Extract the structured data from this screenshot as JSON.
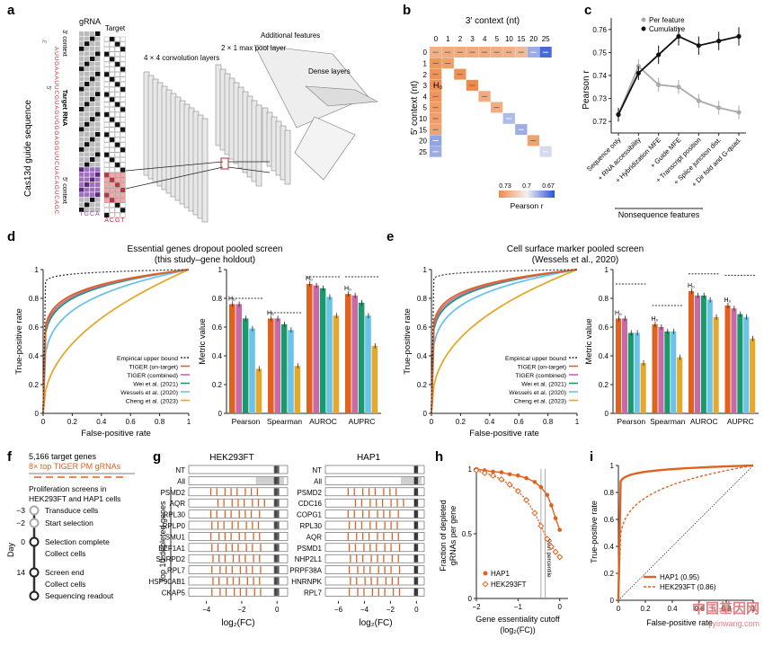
{
  "panels": {
    "a": {
      "letter": "a",
      "col_grna": "gRNA",
      "col_target": "Target",
      "seq_label": "Cas13d guide sequence",
      "ctx3": "3′ context",
      "target_rna": "Target RNA",
      "ctx5": "5′ context",
      "spacer": "AUUGAAAUUCGUAGUGGGAGGUUCUACAGUCAGC",
      "bases_grna": "TGCA",
      "bases_target": "ACGT",
      "prime5": "5′",
      "prime3": "3′",
      "layer_conv": "4 × 4 convolution layers",
      "layer_pool": "2 × 1 max pool layer",
      "layer_feat": "Additional features",
      "layer_dense": "Dense layers"
    },
    "b": {
      "letter": "b",
      "title": "3′ context (nt)",
      "ylabel": "5′ context (nt)",
      "h0": "H₀",
      "legend_title": "Pearson r",
      "legend_ticks": [
        "0.73",
        "0.7",
        "0.67"
      ],
      "low": "#ef8a4a",
      "mid": "#f2f2f2",
      "high": "#2a52d6"
    },
    "c": {
      "letter": "c",
      "ylabel": "Pearson r",
      "xgroup": "Nonsequence features",
      "legend": [
        "Per feature",
        "Cumulative"
      ],
      "c_per": "#aaaaaa",
      "c_cum": "#111111"
    },
    "d": {
      "letter": "d",
      "title1": "Essential genes dropout pooled screen",
      "title2": "(this study–gene holdout)",
      "h0": "H₀"
    },
    "e": {
      "letter": "e",
      "title1": "Cell surface marker pooled screen",
      "title2": "(Wessels et al., 2020)",
      "h0": "H₀"
    },
    "roc": {
      "xlabel": "False-positive rate",
      "ylabel": "True-positive rate",
      "metric_ylabel": "Metric value",
      "metrics": [
        "Pearson",
        "Spearman",
        "AUROC",
        "AUPRC"
      ],
      "legend": [
        {
          "name": "Empirical upper bound",
          "color": "#333333",
          "dash": true
        },
        {
          "name": "TIGER (on-target)",
          "color": "#e0621e"
        },
        {
          "name": "TIGER (combined)",
          "color": "#c76aa8"
        },
        {
          "name": "Wei et al. (2021)",
          "color": "#1a9a6c"
        },
        {
          "name": "Wessels et al. (2020)",
          "color": "#6cc3e8"
        },
        {
          "name": "Cheng et al. (2023)",
          "color": "#e6a82c"
        }
      ]
    },
    "f": {
      "letter": "f",
      "genes": "5,166 target genes",
      "grnas": "8× top TIGER PM gRNAs",
      "desc1": "Proliferation screens in",
      "desc2": "HEK293FT and HAP1 cells",
      "day_label": "Day",
      "steps": [
        {
          "day": "−3",
          "text": "Transduce cells"
        },
        {
          "day": "−2",
          "text": "Start selection"
        },
        {
          "day": "0",
          "text": "Selection complete"
        },
        {
          "day": "",
          "text": "Collect cells"
        },
        {
          "day": "14",
          "text": "Screen end"
        },
        {
          "day": "",
          "text": "Collect cells"
        },
        {
          "day": "",
          "text": "Sequencing readout"
        }
      ]
    },
    "g": {
      "letter": "g",
      "left_title": "HEK293FT",
      "right_title": "HAP1",
      "side_label": "Top 10 depleted genes",
      "xlabel": "log₂(FC)",
      "left_rows": [
        "NT",
        "All",
        "PSMD2",
        "AQR",
        "RPL30",
        "RPLP0",
        "SMU1",
        "EEF1A1",
        "SNRPD2",
        "RPL7",
        "HSP90AB1",
        "CKAP5"
      ],
      "right_rows": [
        "NT",
        "All",
        "PSMD2",
        "CDC16",
        "COPG1",
        "RPL30",
        "AQR",
        "PSMD1",
        "NHP2L1",
        "PRPF38A",
        "HNRNPK",
        "RPL7"
      ],
      "left_ticks": [
        "−4",
        "−2",
        "0"
      ],
      "right_ticks": [
        "−6",
        "−4",
        "−2",
        "0"
      ]
    },
    "h": {
      "letter": "h",
      "ylabel1": "Fraction of depleted",
      "ylabel2": "gRNAs per gene",
      "xlabel1": "Gene essentiality cutoff",
      "xlabel2": "(log₂(FC))",
      "pct": "99th percentile",
      "legend": [
        "HAP1",
        "HEK293FT"
      ],
      "xticks": [
        "−2",
        "−1",
        "0"
      ],
      "yticks": [
        "0",
        "0.5",
        "1"
      ]
    },
    "i": {
      "letter": "i",
      "ylabel": "True-positive rate",
      "xlabel": "False-positive rate",
      "legend": [
        "HAP1 (0.95)",
        "HEK293FT (0.86)"
      ],
      "xticks": [
        "0",
        "0.2",
        "0.4",
        "0.6",
        "0.8",
        "1"
      ],
      "yticks": [
        "0",
        "0.2",
        "0.4",
        "0.6",
        "0.8",
        "1"
      ]
    },
    "watermark": {
      "cn": "中国基因网",
      "url": "jiyinwang.com"
    }
  },
  "chart_data": [
    {
      "panel": "b",
      "type": "heatmap",
      "x_categories": [
        "0",
        "1",
        "2",
        "3",
        "4",
        "5",
        "10",
        "15",
        "20",
        "25"
      ],
      "y_categories": [
        "0",
        "1",
        "2",
        "3",
        "4",
        "5",
        "10",
        "15",
        "20",
        "25"
      ],
      "row0": [
        0.727,
        0.729,
        0.729,
        0.729,
        0.729,
        0.728,
        0.727,
        0.724,
        0.69,
        0.675
      ],
      "col0": [
        0.727,
        0.736,
        0.737,
        0.738,
        0.736,
        0.734,
        0.733,
        0.732,
        0.688,
        0.69
      ],
      "diagonal": [
        0.727,
        0.733,
        0.738,
        0.74,
        0.729,
        0.728,
        0.693,
        0.69,
        0.732,
        0.7
      ],
      "range": [
        0.67,
        0.74
      ]
    },
    {
      "panel": "c",
      "type": "line",
      "categories": [
        "Sequence only",
        "+ RNA accessibility",
        "+ Hybridization MFE",
        "+ Guide MFE",
        "+ Transcript position",
        "+ Splice junction dist.",
        "+ Dir fold and G-quad."
      ],
      "series": [
        {
          "name": "Per feature",
          "values": [
            0.723,
            0.744,
            0.736,
            0.735,
            0.729,
            0.726,
            0.724
          ],
          "err": [
            0.003,
            0.003,
            0.003,
            0.003,
            0.003,
            0.003,
            0.003
          ]
        },
        {
          "name": "Cumulative",
          "values": [
            0.723,
            0.741,
            0.749,
            0.757,
            0.753,
            0.755,
            0.757
          ],
          "err": [
            0.003,
            0.003,
            0.004,
            0.004,
            0.004,
            0.004,
            0.004
          ]
        }
      ],
      "ylim": [
        0.715,
        0.765
      ],
      "yticks": [
        0.72,
        0.73,
        0.74,
        0.75,
        0.76
      ]
    },
    {
      "panel": "d-roc",
      "type": "line",
      "series": [
        {
          "name": "Empirical upper bound",
          "shape": 0.02
        },
        {
          "name": "TIGER (on-target)",
          "shape": 0.12
        },
        {
          "name": "TIGER (combined)",
          "shape": 0.13
        },
        {
          "name": "Wei et al. (2021)",
          "shape": 0.14
        },
        {
          "name": "Wessels et al. (2020)",
          "shape": 0.21
        },
        {
          "name": "Cheng et al. (2023)",
          "shape": 0.45
        }
      ],
      "xlim": [
        0,
        1
      ],
      "ylim": [
        0,
        1
      ]
    },
    {
      "panel": "d-metrics",
      "type": "bar",
      "categories": [
        "Pearson",
        "Spearman",
        "AUROC",
        "AUPRC"
      ],
      "series": [
        {
          "name": "TIGER (on-target)",
          "values": [
            0.76,
            0.66,
            0.9,
            0.83
          ]
        },
        {
          "name": "TIGER (combined)",
          "values": [
            0.76,
            0.66,
            0.89,
            0.82
          ]
        },
        {
          "name": "Wei et al. (2021)",
          "values": [
            0.66,
            0.62,
            0.87,
            0.77
          ]
        },
        {
          "name": "Wessels et al. (2020)",
          "values": [
            0.59,
            0.58,
            0.81,
            0.68
          ]
        },
        {
          "name": "Cheng et al. (2023)",
          "values": [
            0.31,
            0.33,
            0.68,
            0.47
          ]
        }
      ],
      "upper_bound": [
        0.8,
        0.7,
        0.95,
        0.95
      ],
      "ylim": [
        0,
        1
      ]
    },
    {
      "panel": "e-roc",
      "type": "line",
      "series": [
        {
          "name": "Empirical upper bound",
          "shape": 0.015
        },
        {
          "name": "TIGER (on-target)",
          "shape": 0.11
        },
        {
          "name": "TIGER (combined)",
          "shape": 0.12
        },
        {
          "name": "Wei et al. (2021)",
          "shape": 0.13
        },
        {
          "name": "Wessels et al. (2020)",
          "shape": 0.18
        },
        {
          "name": "Cheng et al. (2023)",
          "shape": 0.4
        }
      ],
      "xlim": [
        0,
        1
      ],
      "ylim": [
        0,
        1
      ]
    },
    {
      "panel": "e-metrics",
      "type": "bar",
      "categories": [
        "Pearson",
        "Spearman",
        "AUROC",
        "AUPRC"
      ],
      "series": [
        {
          "name": "TIGER (on-target)",
          "values": [
            0.66,
            0.62,
            0.85,
            0.75
          ]
        },
        {
          "name": "TIGER (combined)",
          "values": [
            0.66,
            0.6,
            0.82,
            0.73
          ]
        },
        {
          "name": "Wei et al. (2021)",
          "values": [
            0.56,
            0.57,
            0.82,
            0.69
          ]
        },
        {
          "name": "Wessels et al. (2020)",
          "values": [
            0.56,
            0.57,
            0.79,
            0.67
          ]
        },
        {
          "name": "Cheng et al. (2023)",
          "values": [
            0.35,
            0.39,
            0.67,
            0.52
          ]
        }
      ],
      "upper_bound": [
        0.9,
        0.75,
        0.97,
        0.96
      ],
      "ylim": [
        0,
        1
      ]
    },
    {
      "panel": "h",
      "type": "line",
      "series": [
        {
          "name": "HAP1",
          "x": [
            -2.0,
            -1.8,
            -1.6,
            -1.4,
            -1.2,
            -1.0,
            -0.8,
            -0.6,
            -0.45,
            -0.3,
            -0.2,
            -0.1,
            0.0
          ],
          "y": [
            1.0,
            0.99,
            0.98,
            0.975,
            0.96,
            0.95,
            0.93,
            0.9,
            0.86,
            0.8,
            0.72,
            0.62,
            0.53
          ]
        },
        {
          "name": "HEK293FT",
          "x": [
            -2.0,
            -1.8,
            -1.6,
            -1.4,
            -1.2,
            -1.0,
            -0.8,
            -0.6,
            -0.45,
            -0.3,
            -0.2,
            -0.1,
            0.0
          ],
          "y": [
            0.99,
            0.97,
            0.95,
            0.92,
            0.88,
            0.83,
            0.76,
            0.66,
            0.56,
            0.46,
            0.4,
            0.36,
            0.32
          ]
        }
      ],
      "xlim": [
        -2,
        0
      ],
      "ylim": [
        0,
        1
      ]
    },
    {
      "panel": "i",
      "type": "line",
      "series": [
        {
          "name": "HAP1",
          "auc": 0.95,
          "shape": 0.03
        },
        {
          "name": "HEK293FT",
          "auc": 0.86,
          "shape": 0.17
        }
      ],
      "xlim": [
        0,
        1
      ],
      "ylim": [
        0,
        1
      ]
    }
  ]
}
